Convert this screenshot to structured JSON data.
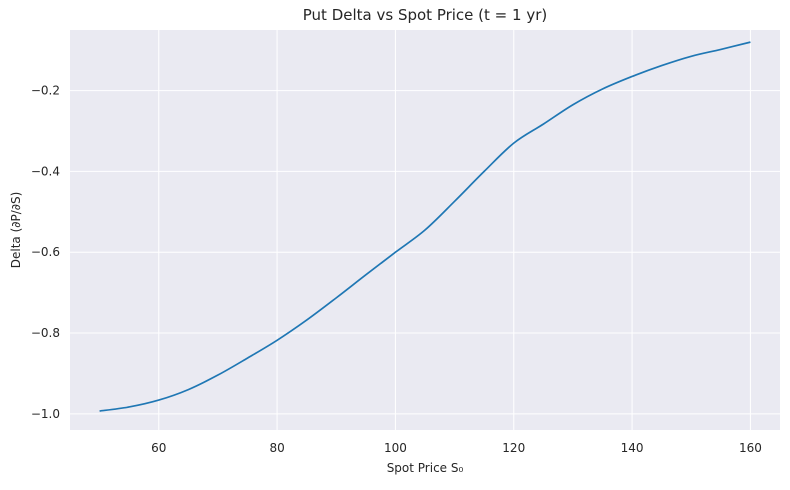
{
  "chart_data": {
    "type": "line",
    "title": "Put Delta vs Spot Price (t = 1 yr)",
    "xlabel": "Spot Price S₀",
    "ylabel": "Delta (∂P/∂S)",
    "xlim": [
      45,
      165
    ],
    "ylim": [
      -1.04,
      -0.05
    ],
    "x_ticks": [
      60,
      80,
      100,
      120,
      140,
      160
    ],
    "x_tick_labels": [
      "60",
      "80",
      "100",
      "120",
      "140",
      "160"
    ],
    "y_ticks": [
      -1.0,
      -0.8,
      -0.6,
      -0.4,
      -0.2
    ],
    "y_tick_labels": [
      "−1.0",
      "−0.8",
      "−0.6",
      "−0.4",
      "−0.2"
    ],
    "grid": true,
    "background_color": "#eaeaf2",
    "grid_color": "#ffffff",
    "series": [
      {
        "color": "#1f77b4",
        "x": [
          50,
          55,
          60,
          65,
          70,
          75,
          80,
          85,
          90,
          95,
          100,
          105,
          110,
          115,
          120,
          125,
          130,
          135,
          140,
          145,
          150,
          155,
          160
        ],
        "y": [
          -0.993,
          -0.983,
          -0.966,
          -0.94,
          -0.904,
          -0.862,
          -0.818,
          -0.768,
          -0.713,
          -0.656,
          -0.6,
          -0.545,
          -0.474,
          -0.4,
          -0.33,
          -0.283,
          -0.235,
          -0.196,
          -0.165,
          -0.138,
          -0.115,
          -0.098,
          -0.08
        ]
      }
    ]
  }
}
